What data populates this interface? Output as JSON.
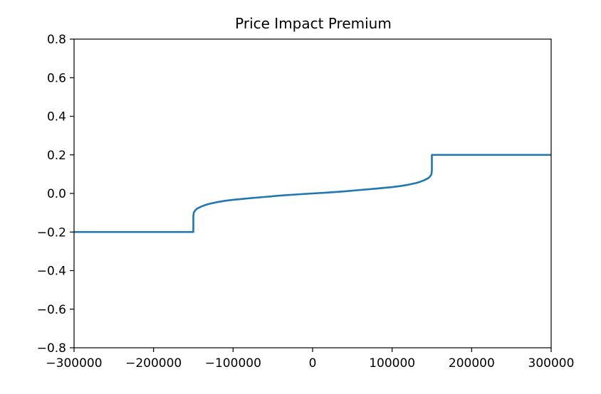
{
  "chart_data": {
    "type": "line",
    "title": "Price Impact Premium",
    "xlabel": "",
    "ylabel": "",
    "xlim": [
      -300000,
      300000
    ],
    "ylim": [
      -0.8,
      0.8
    ],
    "x_ticks": [
      -300000,
      -200000,
      -100000,
      0,
      100000,
      200000,
      300000
    ],
    "x_tick_labels": [
      "−300000",
      "−200000",
      "−100000",
      "0",
      "100000",
      "200000",
      "300000"
    ],
    "y_ticks": [
      -0.8,
      -0.6,
      -0.4,
      -0.2,
      0.0,
      0.2,
      0.4,
      0.6,
      0.8
    ],
    "y_tick_labels": [
      "−0.8",
      "−0.6",
      "−0.4",
      "−0.2",
      "0.0",
      "0.2",
      "0.4",
      "0.6",
      "0.8"
    ],
    "grid": false,
    "series": [
      {
        "color": "#1f77b4",
        "x": [
          -300000,
          -150000,
          -149999,
          -149500,
          -148500,
          -147000,
          -145000,
          -140000,
          -135000,
          -130000,
          -120000,
          -110000,
          -100000,
          -80000,
          -60000,
          -40000,
          -20000,
          0,
          20000,
          40000,
          60000,
          80000,
          100000,
          110000,
          120000,
          130000,
          135000,
          140000,
          145000,
          147000,
          148500,
          149500,
          149999,
          150000,
          300000
        ],
        "y": [
          -0.2,
          -0.2,
          -0.12,
          -0.1,
          -0.093,
          -0.085,
          -0.078,
          -0.068,
          -0.06,
          -0.054,
          -0.045,
          -0.038,
          -0.033,
          -0.025,
          -0.018,
          -0.011,
          -0.005,
          0.0,
          0.005,
          0.011,
          0.018,
          0.025,
          0.033,
          0.038,
          0.045,
          0.054,
          0.06,
          0.068,
          0.078,
          0.085,
          0.093,
          0.1,
          0.12,
          0.2,
          0.2
        ]
      }
    ]
  }
}
